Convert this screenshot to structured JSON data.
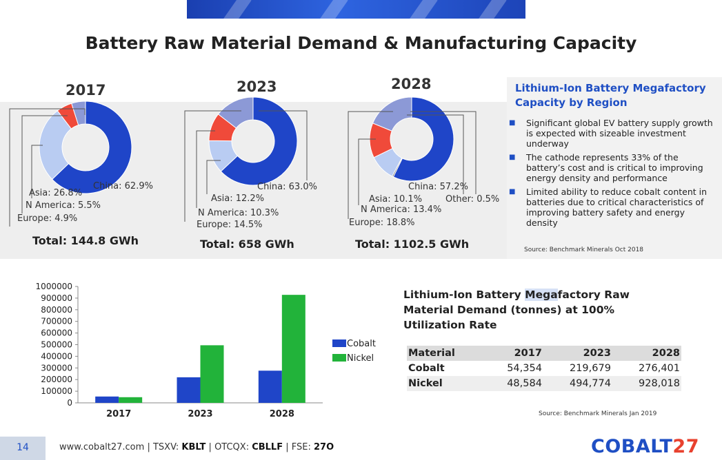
{
  "title": "Battery Raw Material Demand & Manufacturing Capacity",
  "donuts": [
    {
      "year": "2017",
      "total_label": "Total:  144.8 GWh",
      "labels": {
        "china": "China: 62.9%",
        "asia": "Asia: 26.8%",
        "namerica": "N America: 5.5%",
        "europe": "Europe: 4.9%"
      },
      "shares": {
        "china": 62.9,
        "asia": 26.8,
        "namerica": 5.5,
        "europe": 4.9
      }
    },
    {
      "year": "2023",
      "total_label": "Total:  658 GWh",
      "labels": {
        "china": "China: 63.0%",
        "asia": "Asia: 12.2%",
        "namerica": "N America: 10.3%",
        "europe": "Europe: 14.5%"
      },
      "shares": {
        "china": 63.0,
        "asia": 12.2,
        "namerica": 10.3,
        "europe": 14.5
      }
    },
    {
      "year": "2028",
      "total_label": "Total:  1102.5 GWh",
      "labels": {
        "china": "China: 57.2%",
        "asia": "Asia: 10.1%",
        "namerica": "N America: 13.4%",
        "europe": "Europe: 18.8%",
        "other": "Other: 0.5%"
      },
      "shares": {
        "china": 57.2,
        "asia": 10.1,
        "namerica": 13.4,
        "europe": 18.8,
        "other": 0.5
      }
    }
  ],
  "donut_colors": {
    "china": "#1f45c8",
    "asia": "#b9ccf2",
    "namerica": "#f04a3a",
    "europe": "#8c99d6",
    "other": "#6a6a6a"
  },
  "right_panel": {
    "title": "Lithium-Ion Battery Megafactory Capacity by Region",
    "bullets": [
      "Significant global EV battery supply growth is expected with sizeable investment underway",
      "The cathode represents 33% of the battery’s cost and is critical to improving energy density and performance",
      "Limited ability to reduce cobalt content in batteries due to critical characteristics of improving battery safety and energy density"
    ],
    "source": "Source: Benchmark Minerals Oct 2018"
  },
  "chart_data": {
    "type": "bar",
    "categories": [
      "2017",
      "2023",
      "2028"
    ],
    "series": [
      {
        "name": "Cobalt",
        "color": "#1f45c8",
        "values": [
          54354,
          219679,
          276401
        ]
      },
      {
        "name": "Nickel",
        "color": "#22b33a",
        "values": [
          48584,
          494774,
          928018
        ]
      }
    ],
    "ylim": [
      0,
      1000000
    ],
    "yticks": [
      "0",
      "100000",
      "200000",
      "300000",
      "400000",
      "500000",
      "600000",
      "700000",
      "800000",
      "900000",
      "1000000"
    ],
    "legend": "right",
    "grid": false
  },
  "table": {
    "title_pre": "Lithium-Ion Battery ",
    "title_hl": "Mega",
    "title_post": "factory  Raw Material Demand (tonnes) at 100% Utilization Rate",
    "headers": [
      "Material",
      "2017",
      "2023",
      "2028"
    ],
    "rows": [
      [
        "Cobalt",
        "54,354",
        "219,679",
        "276,401"
      ],
      [
        "Nickel",
        "48,584",
        "494,774",
        "928,018"
      ]
    ],
    "source": "Source: Benchmark Minerals Jan 2019"
  },
  "footer": {
    "page": "14",
    "site": "www.cobalt27.com",
    "sep": " | ",
    "tsxv_label": "TSXV: ",
    "tsxv": "KBLT",
    "otcqx_label": "OTCQX: ",
    "otcqx": "CBLLF",
    "fse_label": "FSE: ",
    "fse": "27O",
    "logo_a": "COBALT",
    "logo_b": "27"
  }
}
